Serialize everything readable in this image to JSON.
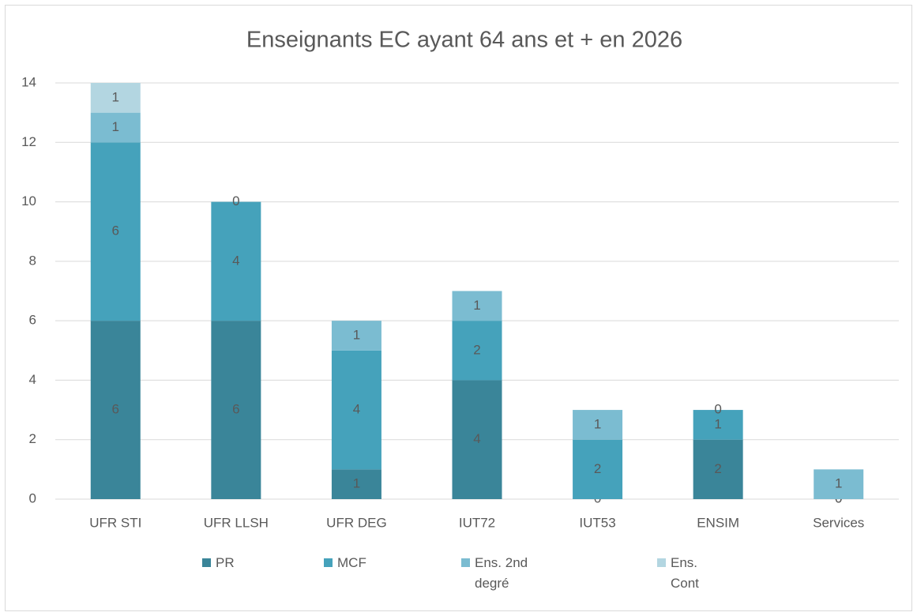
{
  "chart_data": {
    "type": "stacked_bar",
    "title": "Enseignants EC ayant 64 ans et + en 2026",
    "categories": [
      "UFR STI",
      "UFR LLSH",
      "UFR DEG",
      "IUT72",
      "IUT53",
      "ENSIM",
      "Services"
    ],
    "series": [
      {
        "name": "PR",
        "color": "#3a8599",
        "values": [
          6,
          6,
          1,
          4,
          0,
          2,
          0
        ]
      },
      {
        "name": "MCF",
        "color": "#45a2bb",
        "values": [
          6,
          4,
          4,
          2,
          2,
          1,
          0
        ]
      },
      {
        "name": "Ens. 2nd degré",
        "color": "#7bbcd1",
        "values": [
          1,
          0,
          1,
          1,
          1,
          0,
          1
        ]
      },
      {
        "name": "Ens. Cont",
        "color": "#b3d6e1",
        "values": [
          1,
          null,
          null,
          null,
          null,
          null,
          null
        ]
      }
    ],
    "ylim": [
      0,
      14
    ],
    "yticks": [
      0,
      2,
      4,
      6,
      8,
      10,
      12,
      14
    ],
    "grid": true,
    "legend": "bottom"
  }
}
